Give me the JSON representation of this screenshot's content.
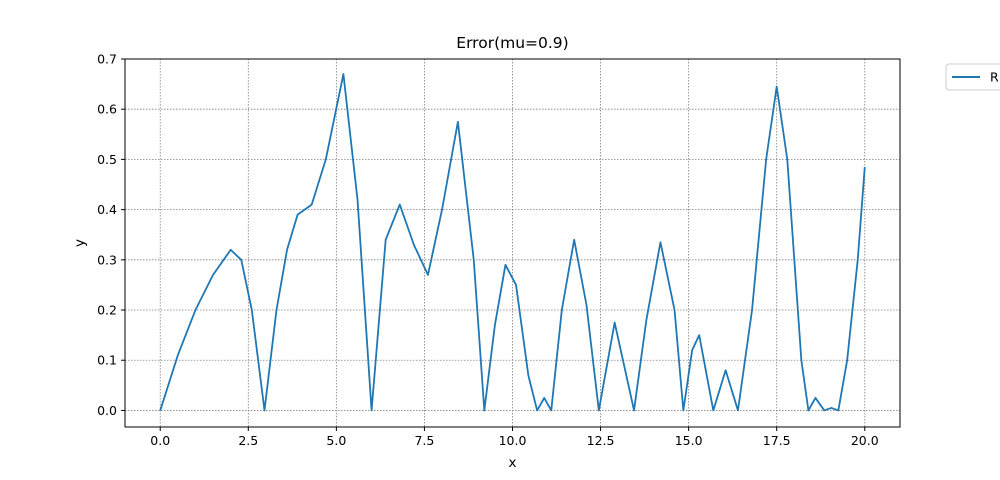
{
  "chart_data": {
    "type": "line",
    "title": "Error(mu=0.9)",
    "xlabel": "x",
    "ylabel": "y",
    "xlim": [
      -1.0,
      21.0
    ],
    "ylim": [
      -0.033,
      0.7
    ],
    "grid": true,
    "legend_position": "outside top-right (clipped)",
    "x_ticks": [
      0.0,
      2.5,
      5.0,
      7.5,
      10.0,
      12.5,
      15.0,
      17.5,
      20.0
    ],
    "x_tick_labels": [
      "0.0",
      "2.5",
      "5.0",
      "7.5",
      "10.0",
      "12.5",
      "15.0",
      "17.5",
      "20.0"
    ],
    "y_ticks": [
      0.0,
      0.1,
      0.2,
      0.3,
      0.4,
      0.5,
      0.6,
      0.7
    ],
    "y_tick_labels": [
      "0.0",
      "0.1",
      "0.2",
      "0.3",
      "0.4",
      "0.5",
      "0.6",
      "0.7"
    ],
    "colors": {
      "series": "#1f77b4",
      "grid": "#808080"
    },
    "series": [
      {
        "name": "R",
        "x": [
          0.0,
          0.5,
          1.0,
          1.5,
          2.0,
          2.3,
          2.6,
          2.96,
          3.3,
          3.6,
          3.9,
          4.3,
          4.7,
          5.2,
          5.6,
          6.0,
          6.4,
          6.8,
          7.2,
          7.6,
          8.0,
          8.45,
          8.9,
          9.2,
          9.5,
          9.8,
          10.1,
          10.45,
          10.7,
          10.9,
          11.1,
          11.4,
          11.75,
          12.1,
          12.45,
          12.9,
          13.45,
          13.8,
          14.2,
          14.6,
          14.85,
          15.1,
          15.3,
          15.7,
          16.05,
          16.4,
          16.8,
          17.2,
          17.5,
          17.8,
          18.2,
          18.4,
          18.6,
          18.85,
          19.05,
          19.25,
          19.5,
          19.8,
          20.0
        ],
        "values": [
          0.0,
          0.11,
          0.2,
          0.27,
          0.32,
          0.3,
          0.2,
          0.0,
          0.2,
          0.32,
          0.39,
          0.41,
          0.5,
          0.67,
          0.42,
          0.0,
          0.34,
          0.41,
          0.33,
          0.27,
          0.4,
          0.575,
          0.3,
          0.0,
          0.17,
          0.29,
          0.25,
          0.07,
          0.0,
          0.025,
          0.0,
          0.2,
          0.34,
          0.21,
          0.0,
          0.175,
          0.0,
          0.18,
          0.335,
          0.2,
          0.0,
          0.12,
          0.15,
          0.0,
          0.08,
          0.0,
          0.2,
          0.5,
          0.645,
          0.5,
          0.1,
          0.0,
          0.025,
          0.0,
          0.005,
          0.0,
          0.1,
          0.3,
          0.485
        ]
      }
    ]
  }
}
